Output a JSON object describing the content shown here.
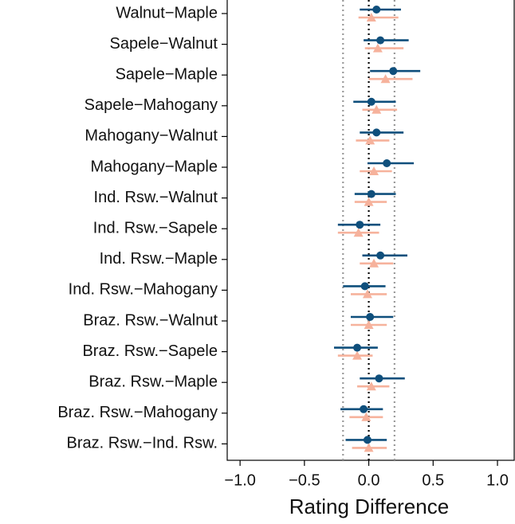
{
  "chart_data": {
    "type": "forest",
    "x_label": "Rating Difference",
    "categories": [
      "Walnut−Maple",
      "Sapele−Walnut",
      "Sapele−Maple",
      "Sapele−Mahogany",
      "Mahogany−Walnut",
      "Mahogany−Maple",
      "Ind. Rsw.−Walnut",
      "Ind. Rsw.−Sapele",
      "Ind. Rsw.−Maple",
      "Ind. Rsw.−Mahogany",
      "Braz. Rsw.−Walnut",
      "Braz. Rsw.−Sapele",
      "Braz. Rsw.−Maple",
      "Braz. Rsw.−Mahogany",
      "Braz. Rsw.−Ind. Rsw."
    ],
    "series": [
      {
        "color": "#0f4f7c",
        "marker": "circle",
        "values": [
          0.06,
          0.09,
          0.19,
          0.02,
          0.06,
          0.14,
          0.02,
          -0.07,
          0.09,
          -0.03,
          0.01,
          -0.09,
          0.08,
          -0.04,
          -0.01
        ],
        "lower": [
          -0.07,
          -0.04,
          0.01,
          -0.12,
          -0.07,
          -0.01,
          -0.11,
          -0.24,
          -0.05,
          -0.2,
          -0.14,
          -0.27,
          -0.07,
          -0.22,
          -0.18
        ],
        "upper": [
          0.25,
          0.31,
          0.4,
          0.21,
          0.27,
          0.35,
          0.21,
          0.09,
          0.3,
          0.13,
          0.19,
          0.07,
          0.28,
          0.11,
          0.14
        ]
      },
      {
        "color": "#f6b29c",
        "marker": "triangle",
        "values": [
          0.02,
          0.07,
          0.13,
          0.06,
          0.01,
          0.04,
          0.0,
          -0.08,
          0.04,
          -0.01,
          0.0,
          -0.09,
          0.02,
          -0.02,
          0.0
        ],
        "lower": [
          -0.08,
          -0.03,
          0.0,
          -0.05,
          -0.1,
          -0.07,
          -0.11,
          -0.24,
          -0.07,
          -0.14,
          -0.14,
          -0.24,
          -0.09,
          -0.15,
          -0.13
        ],
        "upper": [
          0.23,
          0.27,
          0.34,
          0.22,
          0.16,
          0.18,
          0.14,
          0.08,
          0.19,
          0.14,
          0.14,
          0.03,
          0.16,
          0.11,
          0.14
        ]
      }
    ],
    "reference_lines": [
      -0.2,
      0,
      0.2
    ],
    "xlim": [
      -1.1,
      1.13
    ],
    "xticks": [
      {
        "value": -1,
        "label": "−1.0"
      },
      {
        "value": -0.5,
        "label": "−0.5"
      },
      {
        "value": 0,
        "label": "0.0"
      },
      {
        "value": 0.5,
        "label": "0.5"
      },
      {
        "value": 1,
        "label": "1.0"
      }
    ]
  }
}
